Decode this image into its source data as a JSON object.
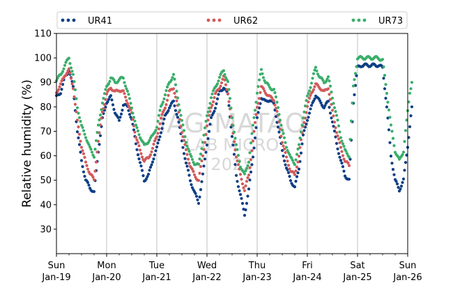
{
  "chart_data": {
    "type": "scatter",
    "title": "",
    "xlabel": "",
    "ylabel": "Relative humidity (%)",
    "ylim": [
      20,
      110
    ],
    "yticks": [
      30,
      40,
      50,
      60,
      70,
      80,
      90,
      100,
      110
    ],
    "xlim": [
      "2025-01-19",
      "2025-01-26"
    ],
    "xticks": [
      {
        "day": "Sun",
        "date": "Jan-19"
      },
      {
        "day": "Mon",
        "date": "Jan-20"
      },
      {
        "day": "Tue",
        "date": "Jan-21"
      },
      {
        "day": "Wed",
        "date": "Jan-22"
      },
      {
        "day": "Thu",
        "date": "Jan-23"
      },
      {
        "day": "Fri",
        "date": "Jan-24"
      },
      {
        "day": "Sat",
        "date": "Jan-25"
      },
      {
        "day": "Sun",
        "date": "Jan-26"
      }
    ],
    "grid": "vertical",
    "legend_position": "top",
    "watermark": {
      "line1": "IAG-MATAO",
      "line2": "LAB MICRO",
      "line3": "2025"
    },
    "series": [
      {
        "name": "UR41",
        "color": "#0d3f86",
        "points": [
          [
            "2025-01-19 00:00",
            84
          ],
          [
            "2025-01-19 02:00",
            86
          ],
          [
            "2025-01-19 04:00",
            92
          ],
          [
            "2025-01-19 06:00",
            95
          ],
          [
            "2025-01-19 08:00",
            88
          ],
          [
            "2025-01-19 10:00",
            70
          ],
          [
            "2025-01-19 12:00",
            58
          ],
          [
            "2025-01-19 14:00",
            50
          ],
          [
            "2025-01-19 16:00",
            47
          ],
          [
            "2025-01-19 18:00",
            45
          ],
          [
            "2025-01-19 20:00",
            62
          ],
          [
            "2025-01-19 22:00",
            75
          ],
          [
            "2025-01-20 00:00",
            82
          ],
          [
            "2025-01-20 02:00",
            84
          ],
          [
            "2025-01-20 04:00",
            78
          ],
          [
            "2025-01-20 06:00",
            74
          ],
          [
            "2025-01-20 08:00",
            81
          ],
          [
            "2025-01-20 10:00",
            80
          ],
          [
            "2025-01-20 12:00",
            75
          ],
          [
            "2025-01-20 14:00",
            65
          ],
          [
            "2025-01-20 16:00",
            57
          ],
          [
            "2025-01-20 18:00",
            50
          ],
          [
            "2025-01-20 20:00",
            52
          ],
          [
            "2025-01-20 22:00",
            58
          ],
          [
            "2025-01-21 00:00",
            63
          ],
          [
            "2025-01-21 02:00",
            70
          ],
          [
            "2025-01-21 04:00",
            76
          ],
          [
            "2025-01-21 06:00",
            80
          ],
          [
            "2025-01-21 08:00",
            82
          ],
          [
            "2025-01-21 10:00",
            76
          ],
          [
            "2025-01-21 12:00",
            66
          ],
          [
            "2025-01-21 14:00",
            57
          ],
          [
            "2025-01-21 16:00",
            50
          ],
          [
            "2025-01-21 18:00",
            45
          ],
          [
            "2025-01-21 20:00",
            41
          ],
          [
            "2025-01-21 22:00",
            52
          ],
          [
            "2025-01-22 00:00",
            65
          ],
          [
            "2025-01-22 02:00",
            75
          ],
          [
            "2025-01-22 04:00",
            80
          ],
          [
            "2025-01-22 06:00",
            86
          ],
          [
            "2025-01-22 08:00",
            88
          ],
          [
            "2025-01-22 10:00",
            85
          ],
          [
            "2025-01-22 12:00",
            68
          ],
          [
            "2025-01-22 14:00",
            52
          ],
          [
            "2025-01-22 16:00",
            44
          ],
          [
            "2025-01-22 18:00",
            36
          ],
          [
            "2025-01-22 20:00",
            46
          ],
          [
            "2025-01-22 22:00",
            60
          ],
          [
            "2025-01-23 00:00",
            75
          ],
          [
            "2025-01-23 02:00",
            84
          ],
          [
            "2025-01-23 04:00",
            82
          ],
          [
            "2025-01-23 06:00",
            83
          ],
          [
            "2025-01-23 08:00",
            81
          ],
          [
            "2025-01-23 10:00",
            72
          ],
          [
            "2025-01-23 12:00",
            62
          ],
          [
            "2025-01-23 14:00",
            55
          ],
          [
            "2025-01-23 16:00",
            50
          ],
          [
            "2025-01-23 18:00",
            47
          ],
          [
            "2025-01-23 20:00",
            55
          ],
          [
            "2025-01-23 22:00",
            68
          ],
          [
            "2025-01-24 00:00",
            75
          ],
          [
            "2025-01-24 02:00",
            80
          ],
          [
            "2025-01-24 04:00",
            85
          ],
          [
            "2025-01-24 06:00",
            82
          ],
          [
            "2025-01-24 08:00",
            80
          ],
          [
            "2025-01-24 10:00",
            82
          ],
          [
            "2025-01-24 12:00",
            74
          ],
          [
            "2025-01-24 14:00",
            65
          ],
          [
            "2025-01-24 16:00",
            58
          ],
          [
            "2025-01-24 18:00",
            52
          ],
          [
            "2025-01-24 20:00",
            50
          ],
          [
            "2025-01-24 22:00",
            82
          ],
          [
            "2025-01-25 00:00",
            96
          ],
          [
            "2025-01-25 02:00",
            97
          ],
          [
            "2025-01-25 04:00",
            97
          ],
          [
            "2025-01-25 06:00",
            97
          ],
          [
            "2025-01-25 08:00",
            97
          ],
          [
            "2025-01-25 10:00",
            97
          ],
          [
            "2025-01-25 12:00",
            96
          ],
          [
            "2025-01-25 14:00",
            80
          ],
          [
            "2025-01-25 16:00",
            60
          ],
          [
            "2025-01-25 18:00",
            50
          ],
          [
            "2025-01-25 20:00",
            46
          ],
          [
            "2025-01-25 22:00",
            50
          ],
          [
            "2025-01-26 00:00",
            64
          ],
          [
            "2025-01-26 01:00",
            72
          ],
          [
            "2025-01-26 02:00",
            80
          ]
        ]
      },
      {
        "name": "UR62",
        "color": "#d25a5a",
        "points": [
          [
            "2025-01-19 00:00",
            86
          ],
          [
            "2025-01-19 02:00",
            89
          ],
          [
            "2025-01-19 04:00",
            93
          ],
          [
            "2025-01-19 06:00",
            95
          ],
          [
            "2025-01-19 08:00",
            88
          ],
          [
            "2025-01-19 10:00",
            74
          ],
          [
            "2025-01-19 12:00",
            64
          ],
          [
            "2025-01-19 14:00",
            57
          ],
          [
            "2025-01-19 16:00",
            53
          ],
          [
            "2025-01-19 18:00",
            50
          ],
          [
            "2025-01-19 20:00",
            66
          ],
          [
            "2025-01-19 22:00",
            78
          ],
          [
            "2025-01-20 00:00",
            85
          ],
          [
            "2025-01-20 02:00",
            88
          ],
          [
            "2025-01-20 04:00",
            86
          ],
          [
            "2025-01-20 06:00",
            87
          ],
          [
            "2025-01-20 08:00",
            86
          ],
          [
            "2025-01-20 10:00",
            82
          ],
          [
            "2025-01-20 12:00",
            77
          ],
          [
            "2025-01-20 14:00",
            68
          ],
          [
            "2025-01-20 16:00",
            62
          ],
          [
            "2025-01-20 18:00",
            58
          ],
          [
            "2025-01-20 20:00",
            59
          ],
          [
            "2025-01-20 22:00",
            63
          ],
          [
            "2025-01-21 00:00",
            68
          ],
          [
            "2025-01-21 02:00",
            75
          ],
          [
            "2025-01-21 04:00",
            80
          ],
          [
            "2025-01-21 06:00",
            86
          ],
          [
            "2025-01-21 08:00",
            88
          ],
          [
            "2025-01-21 10:00",
            80
          ],
          [
            "2025-01-21 12:00",
            70
          ],
          [
            "2025-01-21 14:00",
            62
          ],
          [
            "2025-01-21 16:00",
            56
          ],
          [
            "2025-01-21 18:00",
            52
          ],
          [
            "2025-01-21 20:00",
            50
          ],
          [
            "2025-01-21 22:00",
            60
          ],
          [
            "2025-01-22 00:00",
            72
          ],
          [
            "2025-01-22 02:00",
            80
          ],
          [
            "2025-01-22 04:00",
            85
          ],
          [
            "2025-01-22 06:00",
            88
          ],
          [
            "2025-01-22 08:00",
            92
          ],
          [
            "2025-01-22 10:00",
            86
          ],
          [
            "2025-01-22 12:00",
            72
          ],
          [
            "2025-01-22 14:00",
            60
          ],
          [
            "2025-01-22 16:00",
            52
          ],
          [
            "2025-01-22 18:00",
            46
          ],
          [
            "2025-01-22 20:00",
            52
          ],
          [
            "2025-01-22 22:00",
            66
          ],
          [
            "2025-01-23 00:00",
            80
          ],
          [
            "2025-01-23 02:00",
            88
          ],
          [
            "2025-01-23 04:00",
            86
          ],
          [
            "2025-01-23 06:00",
            84
          ],
          [
            "2025-01-23 08:00",
            83
          ],
          [
            "2025-01-23 10:00",
            76
          ],
          [
            "2025-01-23 12:00",
            66
          ],
          [
            "2025-01-23 14:00",
            59
          ],
          [
            "2025-01-23 16:00",
            54
          ],
          [
            "2025-01-23 18:00",
            52
          ],
          [
            "2025-01-23 20:00",
            60
          ],
          [
            "2025-01-23 22:00",
            72
          ],
          [
            "2025-01-24 00:00",
            80
          ],
          [
            "2025-01-24 02:00",
            86
          ],
          [
            "2025-01-24 04:00",
            89
          ],
          [
            "2025-01-24 06:00",
            88
          ],
          [
            "2025-01-24 08:00",
            86
          ],
          [
            "2025-01-24 10:00",
            88
          ],
          [
            "2025-01-24 12:00",
            78
          ],
          [
            "2025-01-24 14:00",
            70
          ],
          [
            "2025-01-24 16:00",
            63
          ],
          [
            "2025-01-24 18:00",
            58
          ],
          [
            "2025-01-24 20:00",
            56
          ]
        ]
      },
      {
        "name": "UR73",
        "color": "#3aae6b",
        "points": [
          [
            "2025-01-19 00:00",
            91
          ],
          [
            "2025-01-19 02:00",
            93
          ],
          [
            "2025-01-19 04:00",
            97
          ],
          [
            "2025-01-19 06:00",
            100
          ],
          [
            "2025-01-19 08:00",
            93
          ],
          [
            "2025-01-19 10:00",
            80
          ],
          [
            "2025-01-19 12:00",
            72
          ],
          [
            "2025-01-19 14:00",
            68
          ],
          [
            "2025-01-19 16:00",
            63
          ],
          [
            "2025-01-19 18:00",
            60
          ],
          [
            "2025-01-19 20:00",
            72
          ],
          [
            "2025-01-19 22:00",
            82
          ],
          [
            "2025-01-20 00:00",
            88
          ],
          [
            "2025-01-20 02:00",
            92
          ],
          [
            "2025-01-20 04:00",
            90
          ],
          [
            "2025-01-20 06:00",
            91
          ],
          [
            "2025-01-20 08:00",
            92
          ],
          [
            "2025-01-20 10:00",
            86
          ],
          [
            "2025-01-20 12:00",
            80
          ],
          [
            "2025-01-20 14:00",
            72
          ],
          [
            "2025-01-20 16:00",
            68
          ],
          [
            "2025-01-20 18:00",
            64
          ],
          [
            "2025-01-20 20:00",
            66
          ],
          [
            "2025-01-20 22:00",
            68
          ],
          [
            "2025-01-21 00:00",
            72
          ],
          [
            "2025-01-21 02:00",
            80
          ],
          [
            "2025-01-21 04:00",
            85
          ],
          [
            "2025-01-21 06:00",
            90
          ],
          [
            "2025-01-21 08:00",
            93
          ],
          [
            "2025-01-21 10:00",
            84
          ],
          [
            "2025-01-21 12:00",
            74
          ],
          [
            "2025-01-21 14:00",
            66
          ],
          [
            "2025-01-21 16:00",
            60
          ],
          [
            "2025-01-21 18:00",
            57
          ],
          [
            "2025-01-21 20:00",
            56
          ],
          [
            "2025-01-21 22:00",
            66
          ],
          [
            "2025-01-22 00:00",
            76
          ],
          [
            "2025-01-22 02:00",
            84
          ],
          [
            "2025-01-22 04:00",
            88
          ],
          [
            "2025-01-22 06:00",
            92
          ],
          [
            "2025-01-22 08:00",
            95
          ],
          [
            "2025-01-22 10:00",
            90
          ],
          [
            "2025-01-22 12:00",
            76
          ],
          [
            "2025-01-22 14:00",
            64
          ],
          [
            "2025-01-22 16:00",
            56
          ],
          [
            "2025-01-22 18:00",
            52
          ],
          [
            "2025-01-22 20:00",
            58
          ],
          [
            "2025-01-22 22:00",
            72
          ],
          [
            "2025-01-23 00:00",
            86
          ],
          [
            "2025-01-23 02:00",
            95
          ],
          [
            "2025-01-23 04:00",
            90
          ],
          [
            "2025-01-23 06:00",
            88
          ],
          [
            "2025-01-23 08:00",
            87
          ],
          [
            "2025-01-23 10:00",
            80
          ],
          [
            "2025-01-23 12:00",
            70
          ],
          [
            "2025-01-23 14:00",
            64
          ],
          [
            "2025-01-23 16:00",
            59
          ],
          [
            "2025-01-23 18:00",
            57
          ],
          [
            "2025-01-23 20:00",
            64
          ],
          [
            "2025-01-23 22:00",
            76
          ],
          [
            "2025-01-24 00:00",
            84
          ],
          [
            "2025-01-24 02:00",
            90
          ],
          [
            "2025-01-24 04:00",
            96
          ],
          [
            "2025-01-24 06:00",
            92
          ],
          [
            "2025-01-24 08:00",
            90
          ],
          [
            "2025-01-24 10:00",
            92
          ],
          [
            "2025-01-24 12:00",
            84
          ],
          [
            "2025-01-24 14:00",
            76
          ],
          [
            "2025-01-24 16:00",
            68
          ],
          [
            "2025-01-24 18:00",
            62
          ],
          [
            "2025-01-24 20:00",
            60
          ],
          [
            "2025-01-24 22:00",
            88
          ],
          [
            "2025-01-25 00:00",
            100
          ],
          [
            "2025-01-25 02:00",
            100
          ],
          [
            "2025-01-25 04:00",
            100
          ],
          [
            "2025-01-25 06:00",
            100
          ],
          [
            "2025-01-25 08:00",
            100
          ],
          [
            "2025-01-25 10:00",
            100
          ],
          [
            "2025-01-25 12:00",
            99
          ],
          [
            "2025-01-25 14:00",
            86
          ],
          [
            "2025-01-25 16:00",
            72
          ],
          [
            "2025-01-25 18:00",
            62
          ],
          [
            "2025-01-25 20:00",
            58
          ],
          [
            "2025-01-25 22:00",
            62
          ],
          [
            "2025-01-26 00:00",
            78
          ],
          [
            "2025-01-26 01:00",
            86
          ],
          [
            "2025-01-26 02:00",
            90
          ]
        ]
      }
    ]
  }
}
